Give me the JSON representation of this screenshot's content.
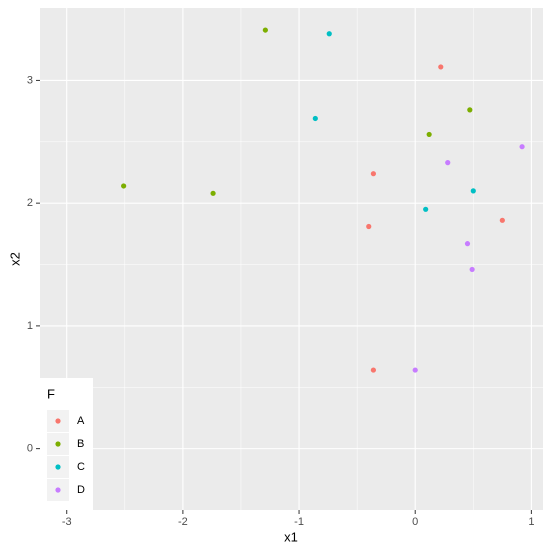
{
  "chart_data": {
    "type": "scatter",
    "x_label": "x1",
    "y_label": "x2",
    "xlim": [
      -3.23,
      1.1
    ],
    "ylim": [
      -0.5,
      3.59
    ],
    "xticks": [
      -3,
      -2,
      -1,
      0,
      1
    ],
    "yticks": [
      0,
      1,
      2,
      3
    ],
    "grid": true,
    "legend_title": "F",
    "legend_position": "bottom-left",
    "series": [
      {
        "name": "A",
        "color": "#F8766D",
        "x": [
          0.22,
          -0.36,
          -0.4,
          0.75,
          -0.36
        ],
        "y": [
          3.11,
          2.24,
          1.81,
          1.86,
          0.64
        ]
      },
      {
        "name": "B",
        "color": "#7CAE00",
        "x": [
          -1.29,
          -2.51,
          -1.74,
          0.47,
          0.12
        ],
        "y": [
          3.41,
          2.14,
          2.08,
          2.76,
          2.56
        ]
      },
      {
        "name": "C",
        "color": "#00BFC4",
        "x": [
          -0.74,
          -0.86,
          0.5,
          0.09
        ],
        "y": [
          3.38,
          2.69,
          2.1,
          1.95
        ]
      },
      {
        "name": "D",
        "color": "#C77CFF",
        "x": [
          0.28,
          0.92,
          0.45,
          0.49,
          0.0
        ],
        "y": [
          2.33,
          2.46,
          1.67,
          1.46,
          0.64
        ]
      }
    ]
  }
}
